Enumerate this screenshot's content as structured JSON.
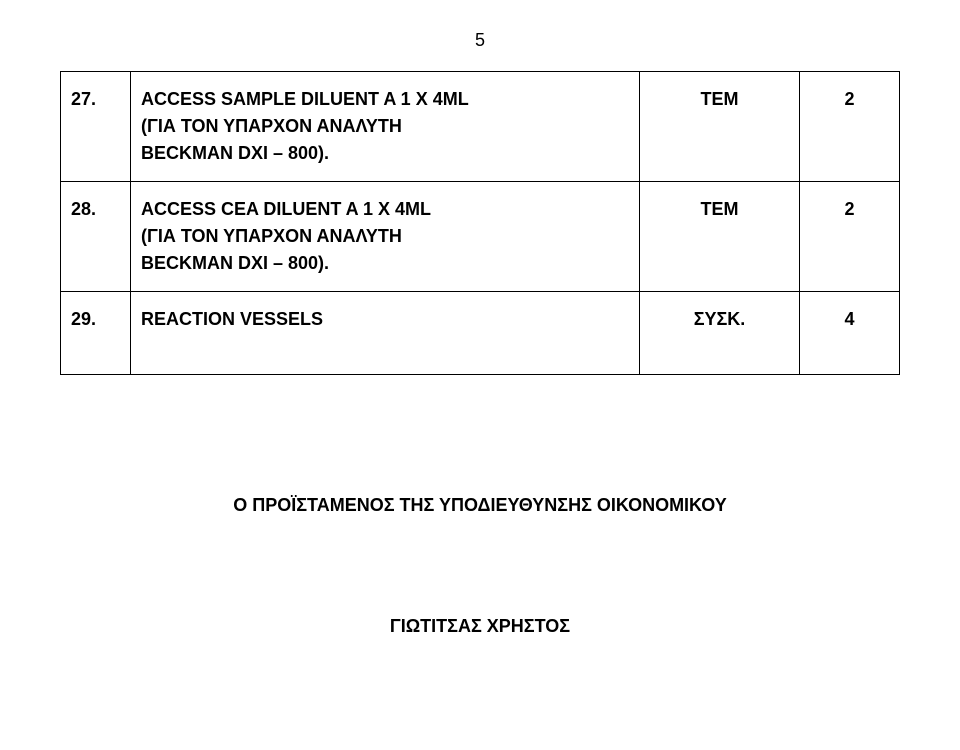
{
  "page_number": "5",
  "table": {
    "rows": [
      {
        "num": "27.",
        "desc_line1": "ACCESS SAMPLE DILUENT A  1 X 4ML",
        "desc_line2": "(ΓΙΑ ΤΟΝ ΥΠΑΡΧΟΝ ΑΝΑΛΥΤΗ",
        "desc_line3": "BECKMAN DXI – 800).",
        "unit": "TEM",
        "qty": "2"
      },
      {
        "num": "28.",
        "desc_line1": "ACCESS  CEA  DILUENT  A  1 X 4ML",
        "desc_line2": "(ΓΙΑ ΤΟΝ ΥΠΑΡΧΟΝ ΑΝΑΛΥΤΗ",
        "desc_line3": "BECKMAN DXI – 800).",
        "unit": "TEM",
        "qty": "2"
      },
      {
        "num": "29.",
        "desc_line1": "REACTION  VESSELS",
        "desc_line2": "",
        "desc_line3": "",
        "unit": "ΣΥΣΚ.",
        "qty": "4"
      }
    ]
  },
  "supervisor_label": "Ο ΠΡΟΪΣΤΑΜΕΝΟΣ ΤΗΣ ΥΠΟΔΙΕΥΘΥΝΣΗΣ ΟΙΚΟΝΟΜΙΚΟΥ",
  "signature_name": "ΓΙΩΤΙΤΣΑΣ  ΧΡΗΣΤΟΣ",
  "colors": {
    "background": "#ffffff",
    "text": "#000000",
    "border": "#000000"
  },
  "typography": {
    "font_family": "Arial",
    "font_size_pt": 18,
    "font_weight": "bold"
  }
}
